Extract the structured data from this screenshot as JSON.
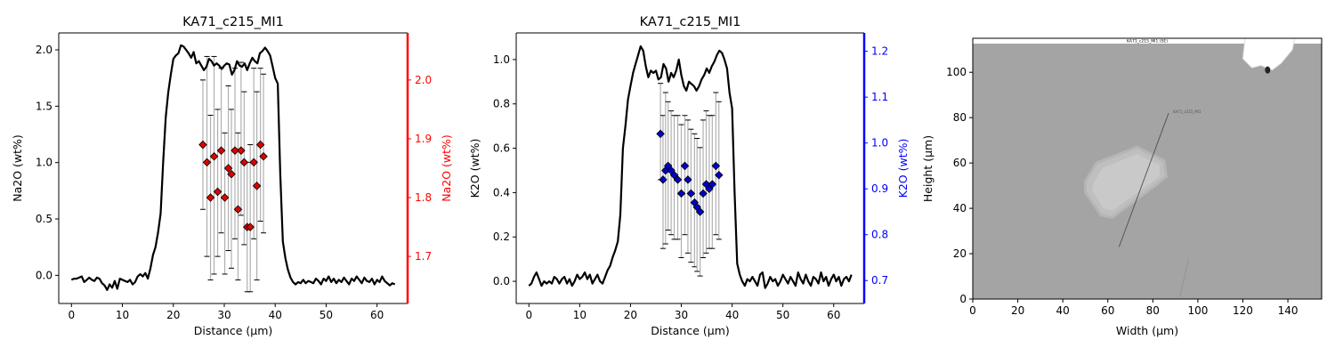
{
  "chart_data": [
    {
      "type": "line+scatter",
      "title": "KA71_c215_MI1",
      "xlabel": "Distance (µm)",
      "ylabel": "Na2O (wt%)",
      "ylabel_right": "Na2O (wt%)",
      "xlim": [
        -2.5,
        66
      ],
      "ylim": [
        -0.25,
        2.15
      ],
      "ylim_right": [
        1.62,
        2.08
      ],
      "xticks": [
        0,
        10,
        20,
        30,
        40,
        50,
        60
      ],
      "yticks": [
        0.0,
        0.5,
        1.0,
        1.5,
        2.0
      ],
      "yticks_right": [
        1.7,
        1.8,
        1.9,
        2.0
      ],
      "right_axis_color": "#ff0000",
      "marker_color": "#e00000",
      "profile": {
        "x": [
          0,
          0.5,
          1,
          1.5,
          2,
          2.5,
          3,
          3.5,
          4,
          4.5,
          5,
          5.5,
          6,
          6.5,
          7,
          7.5,
          8,
          8.5,
          9,
          9.5,
          10,
          10.5,
          11,
          11.5,
          12,
          12.5,
          13,
          13.5,
          14,
          14.5,
          15,
          15.5,
          16,
          16.5,
          17,
          17.5,
          18,
          18.5,
          19,
          19.5,
          20,
          20.5,
          21,
          21.5,
          22,
          22.5,
          23,
          23.5,
          24,
          24.5,
          25,
          25.5,
          26,
          26.5,
          27,
          27.5,
          28,
          28.5,
          29,
          29.5,
          30,
          30.5,
          31,
          31.5,
          32,
          32.5,
          33,
          33.5,
          34,
          34.5,
          35,
          35.5,
          36,
          36.5,
          37,
          37.5,
          38,
          38.5,
          39,
          39.5,
          40,
          40.5,
          41,
          41.5,
          42,
          42.5,
          43,
          43.5,
          44,
          44.5,
          45,
          45.5,
          46,
          46.5,
          47,
          47.5,
          48,
          48.5,
          49,
          49.5,
          50,
          50.5,
          51,
          51.5,
          52,
          52.5,
          53,
          53.5,
          54,
          54.5,
          55,
          55.5,
          56,
          56.5,
          57,
          57.5,
          58,
          58.5,
          59,
          59.5,
          60,
          60.5,
          61,
          61.5,
          62,
          62.5,
          63,
          63.5
        ],
        "y": [
          -0.04,
          -0.03,
          -0.03,
          -0.02,
          -0.01,
          -0.06,
          -0.04,
          -0.02,
          -0.04,
          -0.05,
          -0.02,
          -0.03,
          -0.07,
          -0.09,
          -0.13,
          -0.08,
          -0.11,
          -0.05,
          -0.12,
          -0.03,
          -0.04,
          -0.05,
          -0.06,
          -0.04,
          -0.08,
          -0.06,
          -0.01,
          0.01,
          -0.01,
          0.02,
          -0.03,
          0.06,
          0.18,
          0.25,
          0.38,
          0.55,
          1.0,
          1.4,
          1.62,
          1.78,
          1.92,
          1.95,
          1.97,
          2.04,
          2.03,
          2.0,
          1.97,
          1.93,
          1.98,
          1.88,
          1.9,
          1.86,
          1.82,
          1.85,
          1.92,
          1.9,
          1.86,
          1.88,
          1.86,
          1.83,
          1.86,
          1.88,
          1.87,
          1.78,
          1.82,
          1.9,
          1.86,
          1.85,
          1.88,
          1.82,
          1.88,
          1.93,
          1.9,
          1.88,
          1.97,
          1.99,
          2.02,
          1.99,
          1.95,
          1.85,
          1.75,
          1.7,
          0.9,
          0.3,
          0.15,
          0.05,
          -0.02,
          -0.06,
          -0.08,
          -0.06,
          -0.07,
          -0.04,
          -0.07,
          -0.05,
          -0.06,
          -0.07,
          -0.03,
          -0.05,
          -0.08,
          -0.03,
          -0.05,
          -0.01,
          -0.06,
          -0.03,
          -0.07,
          -0.04,
          -0.06,
          -0.02,
          -0.05,
          -0.08,
          -0.03,
          -0.05,
          -0.01,
          -0.04,
          -0.07,
          -0.02,
          -0.05,
          -0.06,
          -0.03,
          -0.08,
          -0.04,
          -0.06,
          -0.01,
          -0.05,
          -0.07,
          -0.09,
          -0.07,
          -0.08
        ]
      },
      "points_right_axis": [
        {
          "x": 25.8,
          "y": 1.89,
          "lo": 1.78,
          "hi": 2.0
        },
        {
          "x": 26.6,
          "y": 1.86,
          "lo": 1.7,
          "hi": 2.04
        },
        {
          "x": 27.3,
          "y": 1.8,
          "lo": 1.66,
          "hi": 1.94
        },
        {
          "x": 28.0,
          "y": 1.87,
          "lo": 1.67,
          "hi": 2.04
        },
        {
          "x": 28.7,
          "y": 1.81,
          "lo": 1.7,
          "hi": 1.95
        },
        {
          "x": 29.4,
          "y": 1.88,
          "lo": 1.74,
          "hi": 2.02
        },
        {
          "x": 30.1,
          "y": 1.8,
          "lo": 1.67,
          "hi": 1.91
        },
        {
          "x": 30.8,
          "y": 1.85,
          "lo": 1.71,
          "hi": 1.99
        },
        {
          "x": 31.4,
          "y": 1.84,
          "lo": 1.68,
          "hi": 1.95
        },
        {
          "x": 32.1,
          "y": 1.88,
          "lo": 1.73,
          "hi": 2.02
        },
        {
          "x": 32.7,
          "y": 1.78,
          "lo": 1.66,
          "hi": 1.91
        },
        {
          "x": 33.3,
          "y": 1.88,
          "lo": 1.77,
          "hi": 2.03
        },
        {
          "x": 33.9,
          "y": 1.86,
          "lo": 1.72,
          "hi": 1.98
        },
        {
          "x": 34.5,
          "y": 1.75,
          "lo": 1.64,
          "hi": 1.86
        },
        {
          "x": 35.1,
          "y": 1.75,
          "lo": 1.64,
          "hi": 1.89
        },
        {
          "x": 35.8,
          "y": 1.86,
          "lo": 1.73,
          "hi": 2.02
        },
        {
          "x": 36.4,
          "y": 1.82,
          "lo": 1.66,
          "hi": 1.98
        },
        {
          "x": 37.1,
          "y": 1.89,
          "lo": 1.76,
          "hi": 2.02
        },
        {
          "x": 37.7,
          "y": 1.87,
          "lo": 1.74,
          "hi": 2.01
        }
      ]
    },
    {
      "type": "line+scatter",
      "title": "KA71_c215_MI1",
      "xlabel": "Distance (µm)",
      "ylabel": "K2O (wt%)",
      "ylabel_right": "K2O (wt%)",
      "xlim": [
        -2.5,
        66
      ],
      "ylim": [
        -0.1,
        1.12
      ],
      "ylim_right": [
        0.65,
        1.24
      ],
      "xticks": [
        0,
        10,
        20,
        30,
        40,
        50,
        60
      ],
      "yticks": [
        0.0,
        0.2,
        0.4,
        0.6,
        0.8,
        1.0
      ],
      "yticks_right": [
        0.7,
        0.8,
        0.9,
        1.0,
        1.1,
        1.2
      ],
      "right_axis_color": "#0000ff",
      "marker_color": "#0000cc",
      "profile": {
        "x": [
          0,
          0.5,
          1,
          1.5,
          2,
          2.5,
          3,
          3.5,
          4,
          4.5,
          5,
          5.5,
          6,
          6.5,
          7,
          7.5,
          8,
          8.5,
          9,
          9.5,
          10,
          10.5,
          11,
          11.5,
          12,
          12.5,
          13,
          13.5,
          14,
          14.5,
          15,
          15.5,
          16,
          16.5,
          17,
          17.5,
          18,
          18.5,
          19,
          19.5,
          20,
          20.5,
          21,
          21.5,
          22,
          22.5,
          23,
          23.5,
          24,
          24.5,
          25,
          25.5,
          26,
          26.5,
          27,
          27.5,
          28,
          28.5,
          29,
          29.5,
          30,
          30.5,
          31,
          31.5,
          32,
          32.5,
          33,
          33.5,
          34,
          34.5,
          35,
          35.5,
          36,
          36.5,
          37,
          37.5,
          38,
          38.5,
          39,
          39.5,
          40,
          40.5,
          41,
          41.5,
          42,
          42.5,
          43,
          43.5,
          44,
          44.5,
          45,
          45.5,
          46,
          46.5,
          47,
          47.5,
          48,
          48.5,
          49,
          49.5,
          50,
          50.5,
          51,
          51.5,
          52,
          52.5,
          53,
          53.5,
          54,
          54.5,
          55,
          55.5,
          56,
          56.5,
          57,
          57.5,
          58,
          58.5,
          59,
          59.5,
          60,
          60.5,
          61,
          61.5,
          62,
          62.5,
          63,
          63.5
        ],
        "y": [
          -0.02,
          -0.01,
          0.02,
          0.04,
          0.01,
          -0.02,
          0.0,
          -0.01,
          0.0,
          -0.01,
          0.02,
          0.01,
          -0.01,
          0.01,
          0.02,
          -0.01,
          0.01,
          -0.02,
          0.0,
          0.03,
          0.01,
          0.02,
          0.04,
          0.01,
          0.03,
          -0.01,
          0.01,
          0.03,
          0.0,
          -0.01,
          0.02,
          0.05,
          0.07,
          0.11,
          0.14,
          0.18,
          0.3,
          0.6,
          0.7,
          0.82,
          0.88,
          0.94,
          0.98,
          1.02,
          1.06,
          1.04,
          0.97,
          0.92,
          0.95,
          0.94,
          0.95,
          0.91,
          0.92,
          0.98,
          0.96,
          0.9,
          0.94,
          0.92,
          0.95,
          1.0,
          0.93,
          0.88,
          0.86,
          0.9,
          0.89,
          0.88,
          0.86,
          0.88,
          0.91,
          0.93,
          0.96,
          0.94,
          0.97,
          0.99,
          1.02,
          1.04,
          1.03,
          1.0,
          0.96,
          0.85,
          0.78,
          0.4,
          0.08,
          0.03,
          0.0,
          -0.02,
          0.01,
          0.0,
          0.02,
          0.0,
          -0.02,
          0.03,
          0.04,
          -0.03,
          -0.01,
          0.02,
          0.0,
          0.01,
          -0.02,
          0.0,
          0.03,
          0.01,
          -0.01,
          0.02,
          0.0,
          -0.02,
          0.04,
          0.01,
          -0.01,
          0.03,
          0.0,
          -0.02,
          0.02,
          0.01,
          -0.01,
          0.04,
          0.0,
          0.02,
          -0.02,
          0.01,
          0.03,
          0.0,
          0.02,
          -0.02,
          0.01,
          0.02,
          0.0,
          0.03
        ]
      },
      "points_right_axis": [
        {
          "x": 25.9,
          "y": 1.02,
          "lo": 0.92,
          "hi": 1.13
        },
        {
          "x": 26.4,
          "y": 0.92,
          "lo": 0.77,
          "hi": 1.06
        },
        {
          "x": 26.9,
          "y": 0.94,
          "lo": 0.78,
          "hi": 1.11
        },
        {
          "x": 27.4,
          "y": 0.95,
          "lo": 0.81,
          "hi": 1.09
        },
        {
          "x": 28.0,
          "y": 0.94,
          "lo": 0.8,
          "hi": 1.07
        },
        {
          "x": 28.6,
          "y": 0.93,
          "lo": 0.79,
          "hi": 1.06
        },
        {
          "x": 29.3,
          "y": 0.92,
          "lo": 0.79,
          "hi": 1.06
        },
        {
          "x": 30.0,
          "y": 0.89,
          "lo": 0.75,
          "hi": 1.04
        },
        {
          "x": 30.7,
          "y": 0.95,
          "lo": 0.8,
          "hi": 1.06
        },
        {
          "x": 31.3,
          "y": 0.92,
          "lo": 0.76,
          "hi": 1.05
        },
        {
          "x": 31.9,
          "y": 0.89,
          "lo": 0.74,
          "hi": 1.03
        },
        {
          "x": 32.6,
          "y": 0.87,
          "lo": 0.73,
          "hi": 1.02
        },
        {
          "x": 33.1,
          "y": 0.86,
          "lo": 0.72,
          "hi": 1.01
        },
        {
          "x": 33.7,
          "y": 0.85,
          "lo": 0.71,
          "hi": 0.99
        },
        {
          "x": 34.3,
          "y": 0.89,
          "lo": 0.75,
          "hi": 1.05
        },
        {
          "x": 34.9,
          "y": 0.91,
          "lo": 0.76,
          "hi": 1.07
        },
        {
          "x": 35.5,
          "y": 0.9,
          "lo": 0.77,
          "hi": 1.06
        },
        {
          "x": 36.1,
          "y": 0.91,
          "lo": 0.77,
          "hi": 1.06
        },
        {
          "x": 36.8,
          "y": 0.95,
          "lo": 0.8,
          "hi": 1.11
        },
        {
          "x": 37.4,
          "y": 0.93,
          "lo": 0.79,
          "hi": 1.09
        }
      ]
    },
    {
      "type": "image",
      "title": "",
      "xlabel": "Width (µm)",
      "ylabel": "Height (µm)",
      "xlim": [
        0,
        155
      ],
      "ylim": [
        0,
        115
      ],
      "xticks": [
        0,
        20,
        40,
        60,
        80,
        100,
        120,
        140
      ],
      "yticks": [
        0,
        20,
        40,
        60,
        80,
        100
      ],
      "image_caption": "KA71_c215_MI1 (SE)",
      "transect_label": "KA71_c215_MI1",
      "transect": {
        "x": [
          65,
          87
        ],
        "y": [
          23,
          82
        ]
      }
    }
  ]
}
